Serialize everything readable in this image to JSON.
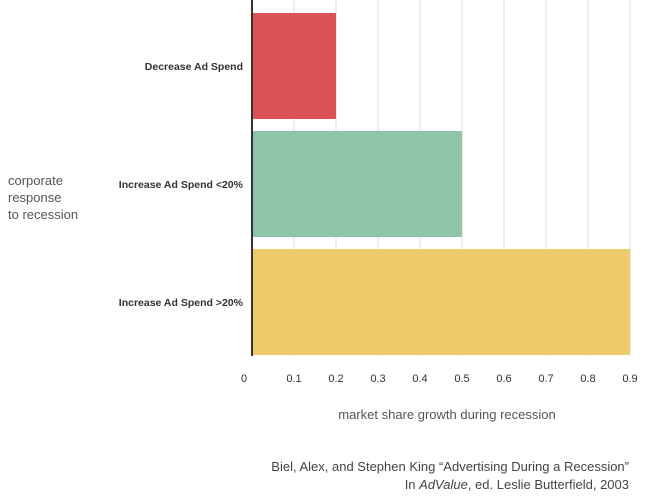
{
  "chart_data": {
    "type": "bar",
    "orientation": "horizontal",
    "categories": [
      "Decrease Ad Spend",
      "Increase Ad Spend <20%",
      "Increase Ad Spend >20%"
    ],
    "values": [
      0.2,
      0.5,
      0.9
    ],
    "colors": [
      "#dc5356",
      "#8fc4a8",
      "#eecb6a"
    ],
    "xticks": [
      "0",
      "0.1",
      "0.2",
      "0.3",
      "0.4",
      "0.5",
      "0.6",
      "0.7",
      "0.8",
      "0.9"
    ],
    "xlim": [
      0,
      0.9
    ],
    "grid": true,
    "title": "",
    "xlabel": "market share growth during recession",
    "ylabel_lines": [
      "corporate",
      "response",
      "to recession"
    ]
  },
  "source": {
    "line1": "Biel, Alex, and Stephen King “Advertising During a Recession”",
    "line2_prefix": "In ",
    "line2_italic": "AdValue",
    "line2_suffix": ", ed. Leslie Butterfield, 2003"
  }
}
